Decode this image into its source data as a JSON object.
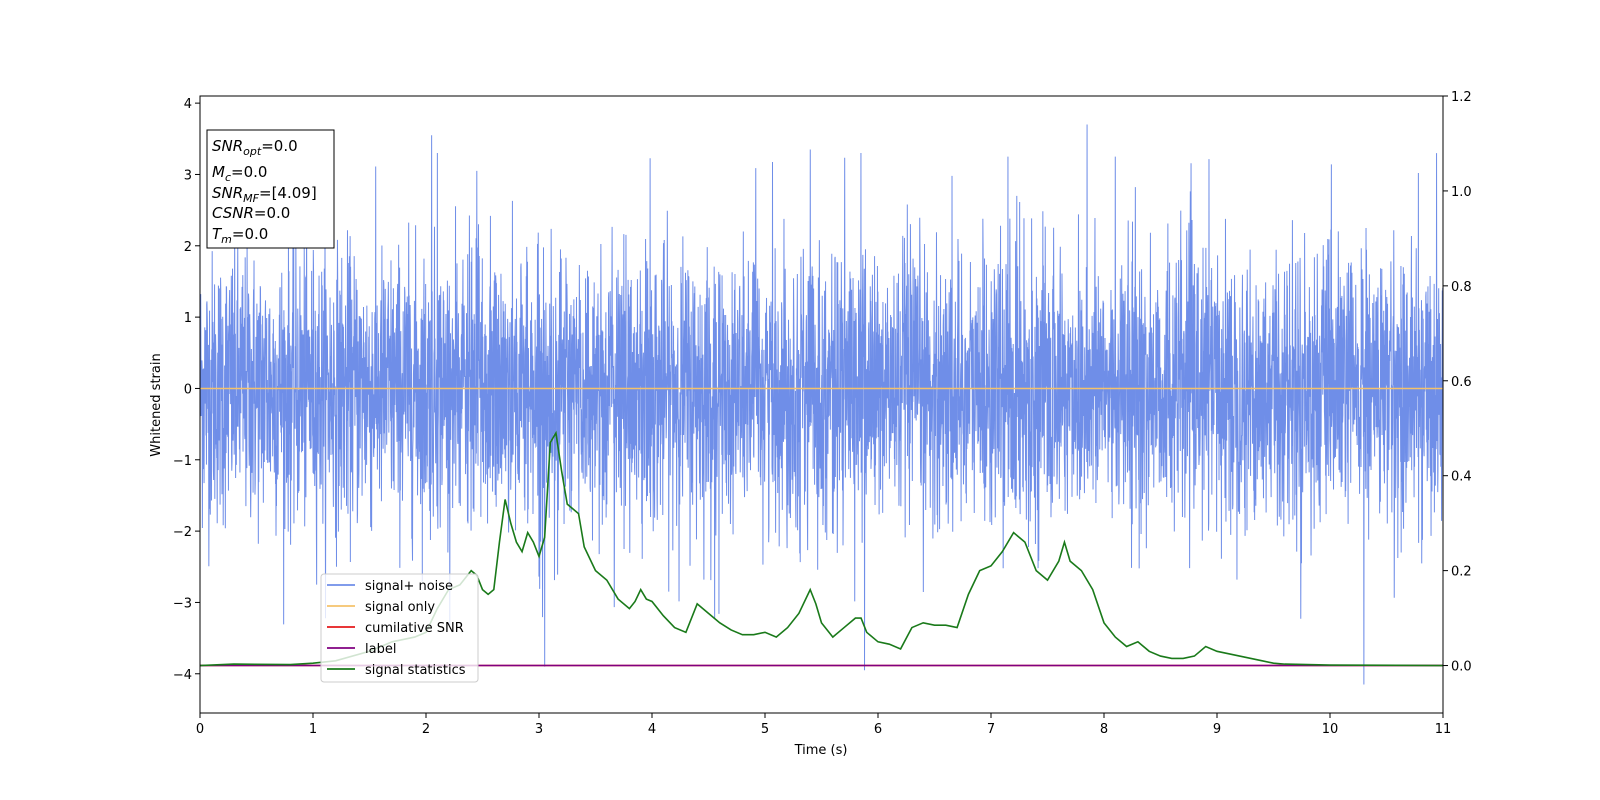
{
  "chart_data": {
    "type": "line",
    "xlabel": "Time (s)",
    "ylabel": "Whitened strain",
    "xlim": [
      0,
      11
    ],
    "ylim": [
      -4.55,
      4.1
    ],
    "y2lim": [
      -0.1,
      1.2
    ],
    "x_ticks": [
      "0",
      "1",
      "2",
      "3",
      "4",
      "5",
      "6",
      "7",
      "8",
      "9",
      "10",
      "11"
    ],
    "y_ticks": [
      "−4",
      "−3",
      "−2",
      "−1",
      "0",
      "1",
      "2",
      "3",
      "4"
    ],
    "y2_ticks": [
      "0.0",
      "0.2",
      "0.4",
      "0.6",
      "0.8",
      "1.0",
      "1.2"
    ],
    "legend": {
      "placement": "lower-left",
      "entries": [
        {
          "label": "signal+ noise",
          "color": "#6f8ee8"
        },
        {
          "label": "signal only",
          "color": "#f5c26b"
        },
        {
          "label": "cumilative SNR",
          "color": "#e41a1c"
        },
        {
          "label": "label",
          "color": "#800080"
        },
        {
          "label": "signal statistics",
          "color": "#1a7a1a"
        }
      ]
    },
    "info_box": {
      "snr_opt": {
        "base": "SNR",
        "sub": "opt",
        "value": "=0.0"
      },
      "mc": {
        "base": "M",
        "sub": "c",
        "value": "=0.0"
      },
      "snr_mf": {
        "base": "SNR",
        "sub": "MF",
        "value": "=[4.09]"
      },
      "csnr": {
        "base": "CSNR",
        "value": "=0.0"
      },
      "tm": {
        "base": "T",
        "sub": "m",
        "value": "=0.0"
      }
    },
    "series": [
      {
        "name": "signal+ noise",
        "axis": "left",
        "color": "#6f8ee8",
        "noise_amplitude_sd": 0.95,
        "noise_range": [
          -4.15,
          3.7
        ],
        "peak_points": [
          [
            2.05,
            3.55
          ],
          [
            2.1,
            3.3
          ],
          [
            2.45,
            3.05
          ],
          [
            5.4,
            3.35
          ],
          [
            5.85,
            3.3
          ],
          [
            7.15,
            3.25
          ],
          [
            7.85,
            3.7
          ],
          [
            8.1,
            3.25
          ],
          [
            3.05,
            -3.9
          ],
          [
            5.88,
            -3.95
          ],
          [
            10.3,
            -4.15
          ]
        ]
      },
      {
        "name": "signal only",
        "axis": "left",
        "color": "#f5c26b",
        "x": [
          0,
          11
        ],
        "y": [
          0,
          0
        ]
      },
      {
        "name": "cumilative SNR",
        "axis": "right",
        "color": "#e41a1c",
        "x": [
          0,
          11
        ],
        "y": [
          0,
          0
        ]
      },
      {
        "name": "label",
        "axis": "right",
        "color": "#800080",
        "x": [
          0,
          11
        ],
        "y": [
          0,
          0
        ]
      },
      {
        "name": "signal statistics",
        "axis": "right",
        "color": "#1a7a1a",
        "x": [
          0,
          0.3,
          0.8,
          1.0,
          1.2,
          1.5,
          1.7,
          1.8,
          1.9,
          2.0,
          2.1,
          2.2,
          2.3,
          2.4,
          2.45,
          2.5,
          2.55,
          2.6,
          2.65,
          2.7,
          2.75,
          2.8,
          2.85,
          2.9,
          2.95,
          3.0,
          3.05,
          3.1,
          3.15,
          3.2,
          3.25,
          3.3,
          3.35,
          3.4,
          3.5,
          3.6,
          3.7,
          3.8,
          3.85,
          3.9,
          3.95,
          4.0,
          4.1,
          4.2,
          4.3,
          4.4,
          4.5,
          4.6,
          4.7,
          4.8,
          4.9,
          5.0,
          5.1,
          5.2,
          5.3,
          5.4,
          5.45,
          5.5,
          5.6,
          5.7,
          5.8,
          5.85,
          5.9,
          6.0,
          6.1,
          6.2,
          6.3,
          6.4,
          6.5,
          6.6,
          6.7,
          6.8,
          6.9,
          7.0,
          7.1,
          7.2,
          7.3,
          7.4,
          7.5,
          7.6,
          7.65,
          7.7,
          7.8,
          7.9,
          8.0,
          8.1,
          8.2,
          8.3,
          8.4,
          8.5,
          8.6,
          8.7,
          8.8,
          8.9,
          9.0,
          9.1,
          9.2,
          9.3,
          9.4,
          9.5,
          9.6,
          9.8,
          10.0,
          11.0
        ],
        "y": [
          0.0,
          0.003,
          0.002,
          0.005,
          0.01,
          0.03,
          0.05,
          0.055,
          0.06,
          0.07,
          0.12,
          0.16,
          0.17,
          0.2,
          0.19,
          0.16,
          0.15,
          0.16,
          0.26,
          0.35,
          0.3,
          0.26,
          0.24,
          0.28,
          0.26,
          0.23,
          0.27,
          0.47,
          0.49,
          0.41,
          0.34,
          0.33,
          0.32,
          0.25,
          0.2,
          0.18,
          0.14,
          0.12,
          0.135,
          0.16,
          0.14,
          0.135,
          0.105,
          0.08,
          0.07,
          0.13,
          0.11,
          0.09,
          0.075,
          0.065,
          0.065,
          0.07,
          0.06,
          0.08,
          0.11,
          0.16,
          0.13,
          0.09,
          0.06,
          0.08,
          0.1,
          0.1,
          0.07,
          0.05,
          0.045,
          0.035,
          0.08,
          0.09,
          0.085,
          0.085,
          0.08,
          0.15,
          0.2,
          0.21,
          0.24,
          0.28,
          0.26,
          0.2,
          0.18,
          0.22,
          0.26,
          0.22,
          0.2,
          0.16,
          0.09,
          0.06,
          0.04,
          0.05,
          0.03,
          0.02,
          0.015,
          0.015,
          0.02,
          0.04,
          0.03,
          0.025,
          0.02,
          0.015,
          0.01,
          0.005,
          0.003,
          0.002,
          0.001,
          0.0
        ]
      }
    ]
  }
}
